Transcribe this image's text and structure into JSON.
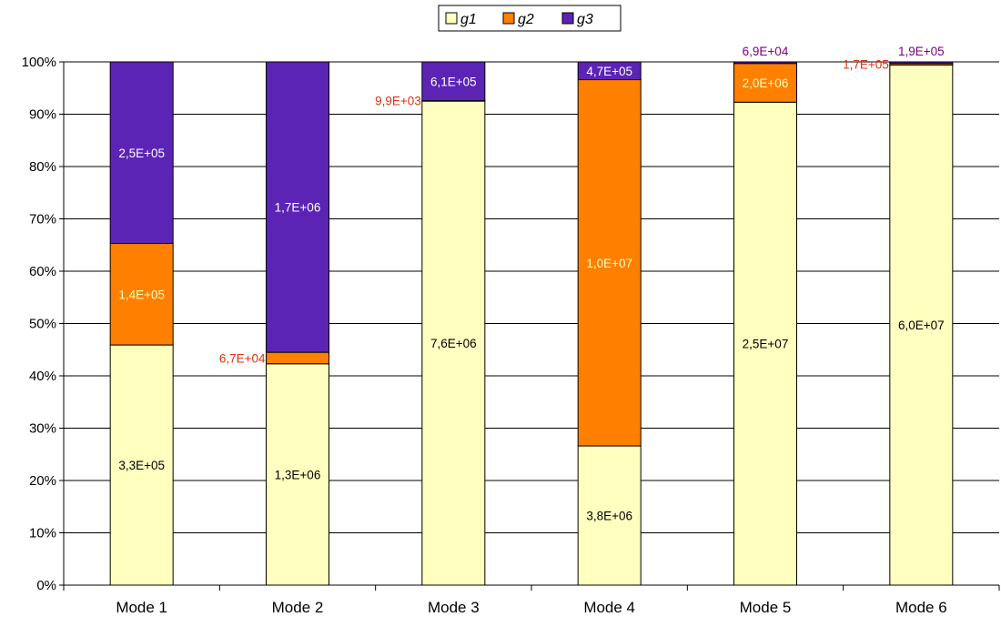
{
  "chart_data": {
    "type": "bar",
    "stacked": true,
    "normalized": true,
    "categories": [
      "Mode 1",
      "Mode 2",
      "Mode 3",
      "Mode 4",
      "Mode 5",
      "Mode 6"
    ],
    "series": [
      {
        "name": "g1",
        "color": "#ffffc0",
        "percent": [
          45.9,
          42.3,
          92.5,
          26.6,
          92.3,
          99.4
        ],
        "labels": [
          "3,3E+05",
          "1,3E+06",
          "7,6E+06",
          "3,8E+06",
          "2,5E+07",
          "6,0E+07"
        ]
      },
      {
        "name": "g2",
        "color": "#ff8000",
        "percent": [
          19.4,
          2.2,
          0.1,
          70.0,
          7.4,
          0.3
        ],
        "labels": [
          "1,4E+05",
          "6,7E+04",
          "9,9E+03",
          "1,0E+07",
          "2,0E+06",
          "1,7E+05"
        ]
      },
      {
        "name": "g3",
        "color": "#5b24b5",
        "percent": [
          34.7,
          55.5,
          7.4,
          3.4,
          0.3,
          0.3
        ],
        "labels": [
          "2,5E+05",
          "1,7E+06",
          "6,1E+05",
          "4,7E+05",
          "6,9E+04",
          "1,9E+05"
        ]
      }
    ],
    "label_colors": {
      "g1": "#000000",
      "g2_inside": "#ffffc0",
      "g2_outside": "#e03010",
      "g3_inside": "#ffffff",
      "g3_outside": "#800080"
    },
    "y_ticks": [
      "0%",
      "10%",
      "20%",
      "30%",
      "40%",
      "50%",
      "60%",
      "70%",
      "80%",
      "90%",
      "100%"
    ],
    "ylim": [
      0,
      100
    ],
    "grid": true,
    "legend_position": "top-center",
    "title": "",
    "xlabel": "",
    "ylabel": ""
  }
}
